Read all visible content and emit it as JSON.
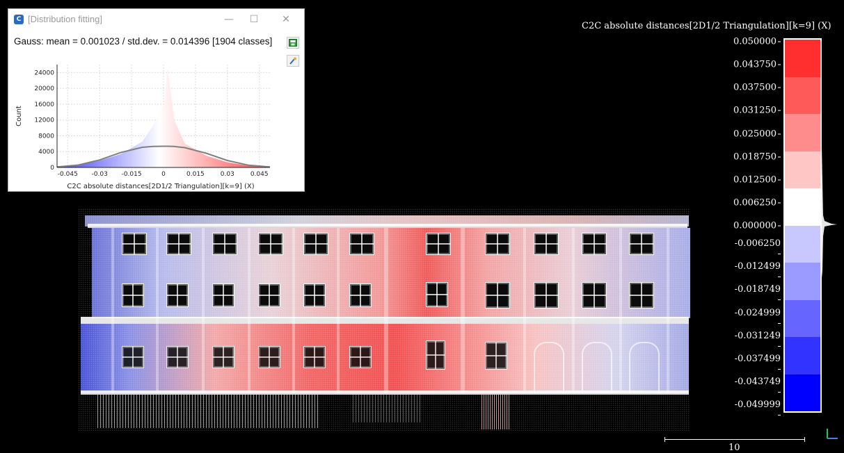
{
  "dialog": {
    "title": "[Distribution fitting]",
    "minimize_icon": "minimize-icon",
    "maximize_icon": "maximize-icon",
    "close_icon": "close-icon",
    "gauss_text": "Gauss: mean = 0.001023 / std.dev. = 0.014396 [1904 classes]",
    "save_icon": "save-icon",
    "pick_icon": "pick-icon"
  },
  "histogram": {
    "ylabel": "Count",
    "xlabel": "C2C absolute distances[2D1/2 Triangulation][k=9] (X)",
    "yticks": [
      "0",
      "4000",
      "8000",
      "12000",
      "16000",
      "20000",
      "24000"
    ],
    "xticks": [
      "-0.045",
      "-0.03",
      "-0.015",
      "0",
      "0.015",
      "0.03",
      "0.045"
    ]
  },
  "chart_data": {
    "type": "area",
    "title": "",
    "xlabel": "C2C absolute distances[2D1/2 Triangulation][k=9] (X)",
    "ylabel": "Count",
    "xlim": [
      -0.05,
      0.05
    ],
    "ylim": [
      0,
      26000
    ],
    "x": [
      -0.05,
      -0.04,
      -0.03,
      -0.02,
      -0.01,
      -0.005,
      0.0,
      0.002,
      0.005,
      0.01,
      0.02,
      0.03,
      0.04,
      0.05
    ],
    "series": [
      {
        "values": [
          150,
          600,
          1700,
          3400,
          6500,
          10500,
          16000,
          25000,
          12000,
          6000,
          3000,
          1300,
          450,
          120
        ]
      },
      {
        "values": [
          130,
          620,
          1900,
          3800,
          5100,
          5300,
          5350,
          5350,
          5300,
          5000,
          3600,
          1750,
          560,
          120
        ]
      }
    ]
  },
  "scale": {
    "title": "C2C absolute distances[2D1/2 Triangulation][k=9] (X)",
    "ticks": [
      "0.050000",
      "0.043750",
      "0.037500",
      "0.031250",
      "0.025000",
      "0.018750",
      "0.012500",
      "0.006250",
      "0.000000",
      "-0.006250",
      "-0.012499",
      "-0.018749",
      "-0.024999",
      "-0.031249",
      "-0.037499",
      "-0.043749",
      "-0.049999"
    ],
    "colors": [
      "#ff2f2f",
      "#ff5a5a",
      "#ff8c8c",
      "#ffc6c6",
      "#ffffff",
      "#c8c8ff",
      "#9a9aff",
      "#6666ff",
      "#3333ff",
      "#0000ff"
    ]
  },
  "scale_bar": {
    "label": "10"
  }
}
